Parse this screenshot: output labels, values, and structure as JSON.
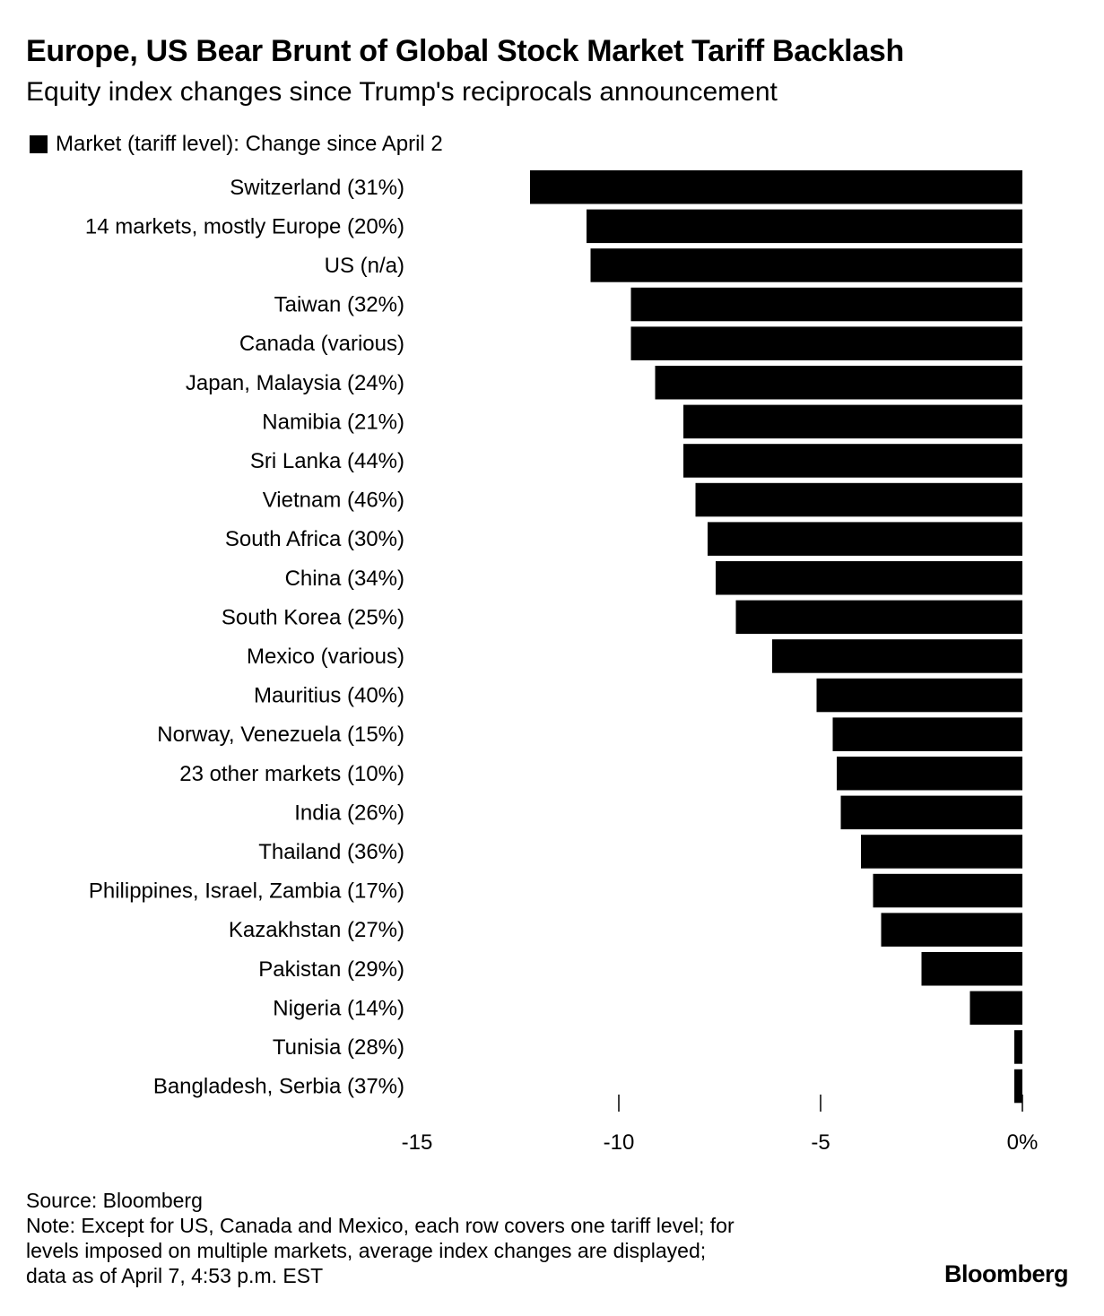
{
  "chart_data": {
    "type": "bar",
    "orientation": "horizontal",
    "title": "Europe, US Bear Brunt of Global Stock Market Tariff Backlash",
    "subtitle": "Equity index changes since Trump's reciprocals announcement",
    "legend": "Market (tariff level): Change since April 2",
    "xlim": [
      -15,
      0
    ],
    "ticks": [
      -15,
      -10,
      -5,
      0
    ],
    "tick_labels": [
      "-15",
      "-10",
      "-5",
      "0%"
    ],
    "color": "#000000",
    "categories": [
      "Switzerland (31%)",
      "14 markets, mostly Europe (20%)",
      "US (n/a)",
      "Taiwan (32%)",
      "Canada (various)",
      "Japan, Malaysia (24%)",
      "Namibia (21%)",
      "Sri Lanka (44%)",
      "Vietnam (46%)",
      "South Africa (30%)",
      "China (34%)",
      "South Korea (25%)",
      "Mexico (various)",
      "Mauritius (40%)",
      "Norway, Venezuela (15%)",
      "23 other markets (10%)",
      "India (26%)",
      "Thailand (36%)",
      "Philippines, Israel, Zambia (17%)",
      "Kazakhstan (27%)",
      "Pakistan (29%)",
      "Nigeria (14%)",
      "Tunisia (28%)",
      "Bangladesh, Serbia (37%)"
    ],
    "values": [
      -12.2,
      -10.8,
      -10.7,
      -9.7,
      -9.7,
      -9.1,
      -8.4,
      -8.4,
      -8.1,
      -7.8,
      -7.6,
      -7.1,
      -6.2,
      -5.1,
      -4.7,
      -4.6,
      -4.5,
      -4.0,
      -3.7,
      -3.5,
      -2.5,
      -1.3,
      -0.2,
      -0.2
    ]
  },
  "footer": {
    "source": "Source: Bloomberg",
    "note_line1": "Note: Except for US, Canada and Mexico, each row covers one tariff level; for",
    "note_line2": "levels imposed on multiple markets, average index changes are displayed;",
    "note_line3": "data as of April 7, 4:53 p.m. EST"
  },
  "brand": "Bloomberg"
}
